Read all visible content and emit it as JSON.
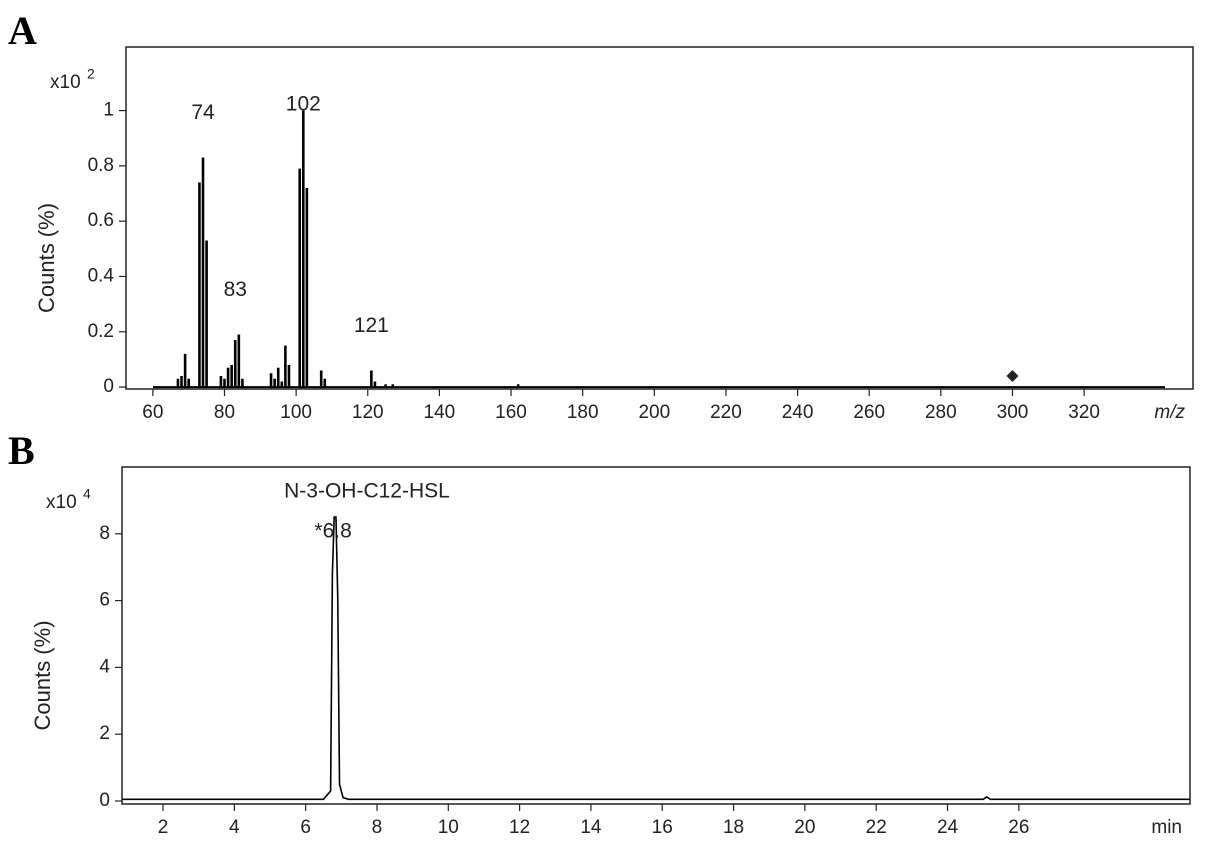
{
  "chart_data": [
    {
      "type": "bar",
      "panel_label": "A",
      "y_multiplier": {
        "base": "x10",
        "exponent": "2"
      },
      "ylabel": "Counts (%)",
      "xlabel": "m/z",
      "color": "#000000",
      "x": [
        67,
        68,
        69,
        70,
        73,
        74,
        75,
        79,
        80,
        81,
        82,
        83,
        84,
        85,
        93,
        94,
        95,
        96,
        97,
        98,
        101,
        102,
        103,
        107,
        108,
        121,
        122,
        125,
        127,
        162
      ],
      "values": [
        0.03,
        0.04,
        0.12,
        0.03,
        0.74,
        0.83,
        0.53,
        0.04,
        0.03,
        0.07,
        0.08,
        0.17,
        0.19,
        0.03,
        0.05,
        0.03,
        0.07,
        0.02,
        0.15,
        0.08,
        0.79,
        1.0,
        0.72,
        0.06,
        0.03,
        0.06,
        0.02,
        0.01,
        0.01,
        0.01
      ],
      "marker": {
        "x": 300,
        "y": 0.04
      },
      "annotations": [
        {
          "text": "74",
          "x": 74,
          "y": 0.99
        },
        {
          "text": "102",
          "x": 102,
          "y": 1.02
        },
        {
          "text": "83",
          "x": 83,
          "y": 0.35
        },
        {
          "text": "121",
          "x": 121,
          "y": 0.22
        }
      ],
      "xlim": [
        52.5,
        350.4
      ],
      "ylim": [
        -0.007,
        1.23
      ],
      "xticks": [
        60,
        80,
        100,
        120,
        140,
        160,
        180,
        200,
        220,
        240,
        260,
        280,
        300,
        320
      ],
      "yticks": [
        0,
        0.2,
        0.4,
        0.6,
        0.8,
        1
      ]
    },
    {
      "type": "line",
      "panel_label": "B",
      "y_multiplier": {
        "base": "x10",
        "exponent": "4"
      },
      "ylabel": "Counts (%)",
      "xlabel": "min",
      "color": "#000000",
      "x": [
        0.85,
        6.5,
        6.7,
        6.75,
        6.8,
        6.85,
        6.9,
        6.95,
        7.05,
        7.2,
        25.0,
        25.1,
        25.2,
        30.8
      ],
      "values": [
        0.05,
        0.05,
        0.3,
        6.8,
        8.5,
        8.5,
        6.1,
        0.5,
        0.1,
        0.05,
        0.05,
        0.12,
        0.05,
        0.05
      ],
      "annotations": [
        {
          "text": "N-3-OH-C12-HSL",
          "x": 7.72,
          "y": 9.25
        },
        {
          "text": "*6.8",
          "x": 6.77,
          "y": 8.05
        }
      ],
      "xlim": [
        0.85,
        30.8
      ],
      "ylim": [
        -0.09,
        10.0
      ],
      "xticks": [
        2,
        4,
        6,
        8,
        10,
        12,
        14,
        16,
        18,
        20,
        22,
        24,
        26
      ],
      "yticks": [
        0,
        2,
        4,
        6,
        8
      ]
    }
  ]
}
